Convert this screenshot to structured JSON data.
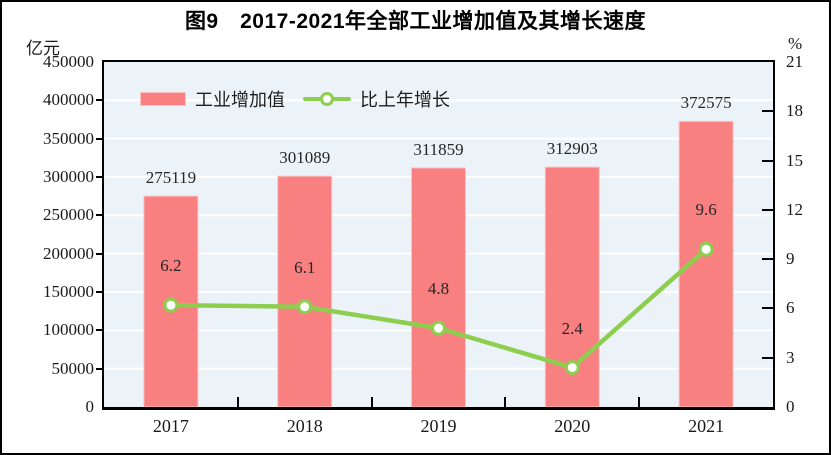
{
  "chart_data": {
    "type": "bar+line",
    "title": "图9　2017-2021年全部工业增加值及其增长速度",
    "categories": [
      "2017",
      "2018",
      "2019",
      "2020",
      "2021"
    ],
    "series": [
      {
        "name": "工业增加值",
        "type": "bar",
        "axis": "left",
        "unit": "亿元",
        "values": [
          275119,
          301089,
          311859,
          312903,
          372575
        ]
      },
      {
        "name": "比上年增长",
        "type": "line",
        "axis": "right",
        "unit": "%",
        "values": [
          6.2,
          6.1,
          4.8,
          2.4,
          9.6
        ]
      }
    ],
    "left_axis": {
      "label": "亿元",
      "min": 0,
      "max": 450000,
      "step": 50000
    },
    "right_axis": {
      "label": "%",
      "min": 0,
      "max": 21,
      "step": 3
    },
    "grid": true,
    "gridline_orientation": "horizontal",
    "legend_position": "top-inside"
  },
  "colors": {
    "bar_fill": "#F98080",
    "bar_edge": "#FBC4C4",
    "line": "#8DCE4F",
    "marker_fill": "#FFFFFF",
    "plot_bg": "#EBF3F8",
    "gridline": "#FFFFFF",
    "axis": "#000000",
    "text": "#1A1A1A"
  }
}
